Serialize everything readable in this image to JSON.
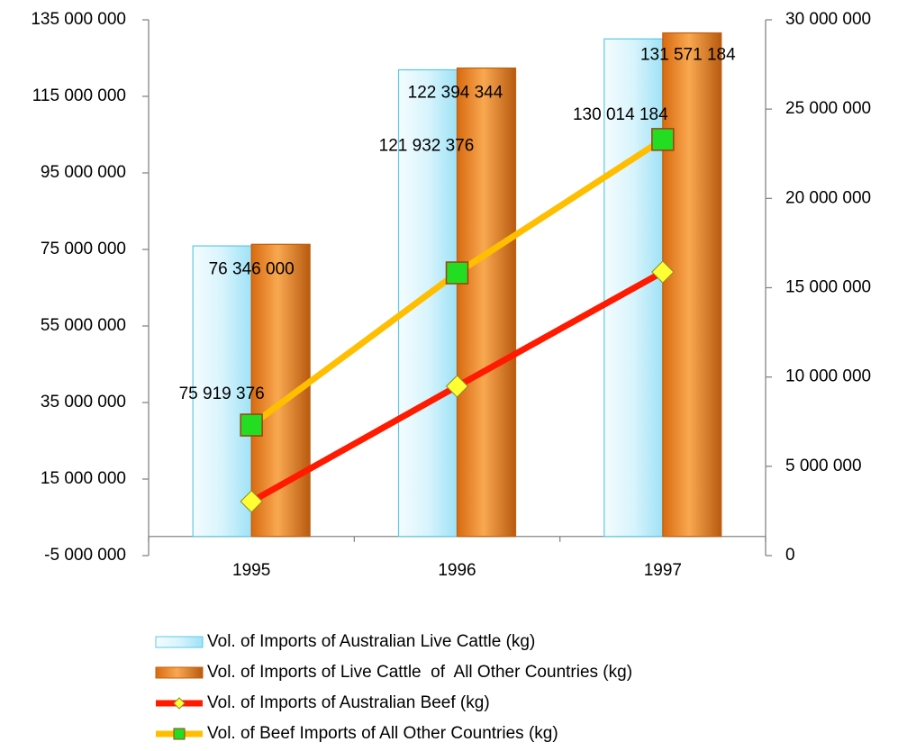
{
  "chart_data": {
    "type": "bar",
    "categories": [
      "1995",
      "1996",
      "1997"
    ],
    "ylim": [
      -5000000,
      135000000
    ],
    "yticks": [
      {
        "value": -5000000,
        "label": "-5 000 000"
      },
      {
        "value": 15000000,
        "label": "15 000 000"
      },
      {
        "value": 35000000,
        "label": "35 000 000"
      },
      {
        "value": 55000000,
        "label": "55 000 000"
      },
      {
        "value": 75000000,
        "label": "75 000 000"
      },
      {
        "value": 95000000,
        "label": "95 000 000"
      },
      {
        "value": 115000000,
        "label": "115 000 000"
      },
      {
        "value": 135000000,
        "label": "135 000 000"
      }
    ],
    "y2lim": [
      0,
      30000000
    ],
    "y2ticks": [
      0,
      {
        "value": 5000000,
        "label": "5 000 000"
      },
      {
        "value": 10000000,
        "label": "10 000 000"
      },
      {
        "value": 15000000,
        "label": "15 000 000"
      },
      {
        "value": 20000000,
        "label": "20 000 000"
      },
      {
        "value": 25000000,
        "label": "25 000 000"
      },
      {
        "value": 30000000,
        "label": "30 000 000"
      }
    ],
    "legend": "bottom",
    "series": [
      {
        "name": "Vol. of Imports of Australian Live Cattle (kg)",
        "type": "bar",
        "color": "#bfeefa",
        "values": [
          75919376,
          121932376,
          130014184
        ],
        "value_labels": [
          "75 919 376",
          "121 932 376",
          "130 014 184"
        ]
      },
      {
        "name": "Vol. of Imports of Live Cattle  of  All Other Countries (kg)",
        "type": "bar",
        "color": "#f0902f",
        "values": [
          76346000,
          122394344,
          131571184
        ],
        "value_labels": [
          "76 346 000",
          "122 394 344",
          "131 571 184"
        ]
      },
      {
        "name": "Vol. of Imports of Australian Beef (kg)",
        "type": "line",
        "axis": "y2",
        "color": "#ff1a00",
        "marker_color": "#ffff33",
        "values": [
          3030000,
          9480000,
          15880000
        ]
      },
      {
        "name": "Vol. of Beef Imports of All Other Countries (kg)",
        "type": "line",
        "axis": "y2",
        "color": "#ffbf00",
        "marker_color": "#22dd22",
        "values": [
          7310000,
          15830000,
          23300000
        ]
      }
    ]
  }
}
